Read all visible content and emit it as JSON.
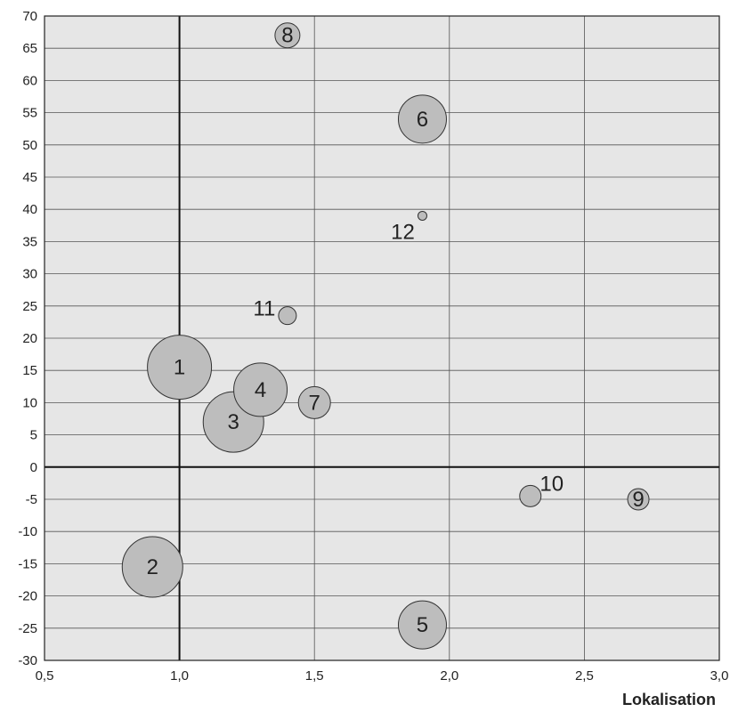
{
  "chart_data": {
    "type": "scatter",
    "title": "",
    "xlabel": "Lokalisation",
    "ylabel": "",
    "xlim": [
      0.5,
      3.0
    ],
    "ylim": [
      -30,
      70
    ],
    "x_tick_step": 0.5,
    "y_tick_step": 5,
    "decimal_separator": ",",
    "grid": true,
    "colors": {
      "plot_background": "#e6e6e6",
      "bubble_fill": "#bdbdbd",
      "bubble_stroke": "#333333",
      "grid": "#555555",
      "axis": "#111111"
    },
    "points": [
      {
        "label": "1",
        "x": 1.0,
        "y": 15.5,
        "size": 36
      },
      {
        "label": "2",
        "x": 0.9,
        "y": -15.5,
        "size": 34
      },
      {
        "label": "3",
        "x": 1.2,
        "y": 7,
        "size": 34
      },
      {
        "label": "4",
        "x": 1.3,
        "y": 12,
        "size": 30
      },
      {
        "label": "5",
        "x": 1.9,
        "y": -24.5,
        "size": 27
      },
      {
        "label": "6",
        "x": 1.9,
        "y": 54,
        "size": 27
      },
      {
        "label": "7",
        "x": 1.5,
        "y": 10,
        "size": 18
      },
      {
        "label": "8",
        "x": 1.4,
        "y": 67,
        "size": 14
      },
      {
        "label": "9",
        "x": 2.7,
        "y": -5,
        "size": 12
      },
      {
        "label": "10",
        "x": 2.3,
        "y": -4.5,
        "size": 12
      },
      {
        "label": "11",
        "x": 1.4,
        "y": 23.5,
        "size": 10
      },
      {
        "label": "12",
        "x": 1.9,
        "y": 39,
        "size": 5
      }
    ]
  }
}
